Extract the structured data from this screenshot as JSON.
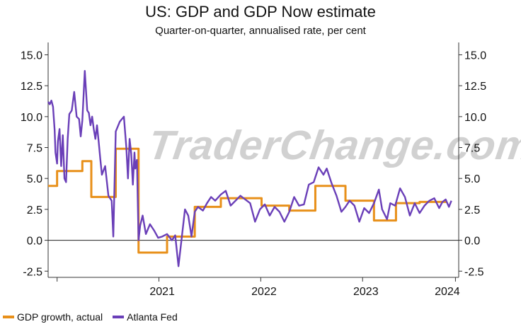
{
  "colors": {
    "actual": "#E8901A",
    "atlanta": "#6A3FB8",
    "axis": "#333333",
    "zero": "#222222"
  },
  "watermark_text": "TraderChange.com",
  "chart_data": {
    "type": "line",
    "title": "US: GDP and GDP Now estimate",
    "subtitle": "Quarter-on-quarter, annualised rate, per cent",
    "ylim": [
      -3.0,
      16.0
    ],
    "xlim": [
      2020.1,
      2025.14
    ],
    "y_ticks": [
      -2.5,
      0.0,
      2.5,
      5.0,
      7.5,
      10.0,
      12.5,
      15.0
    ],
    "y_tick_labels": [
      "-2.5",
      "0.0",
      "2.5",
      "5.0",
      "7.5",
      "10.0",
      "12.5",
      "15.0"
    ],
    "x_ticks": [
      2021.5,
      2022.75,
      2024.0,
      2025.0
    ],
    "x_tick_labels": [
      "2021",
      "2022",
      "2023",
      "2024"
    ],
    "x_major_dividers": [
      2020.21,
      2021.46,
      2022.71,
      2023.96,
      2025.1
    ],
    "legend": [
      "GDP growth, actual",
      "Atlanta Fed"
    ],
    "series": [
      {
        "name": "GDP growth, actual",
        "step": true,
        "x": [
          2020.1,
          2020.21,
          2020.52,
          2020.63,
          2020.93,
          2021.21,
          2021.56,
          2021.9,
          2022.22,
          2022.72,
          2023.06,
          2023.38,
          2023.75,
          2024.1,
          2024.37,
          2024.66,
          2025.0
        ],
        "y": [
          4.4,
          5.6,
          6.4,
          3.5,
          7.4,
          -1.0,
          0.3,
          2.7,
          3.4,
          2.8,
          2.4,
          4.4,
          3.2,
          1.6,
          3.0,
          3.1,
          3.1
        ]
      },
      {
        "name": "Atlanta Fed",
        "step": false,
        "x": [
          2020.1,
          2020.12,
          2020.14,
          2020.16,
          2020.18,
          2020.19,
          2020.21,
          2020.22,
          2020.24,
          2020.26,
          2020.28,
          2020.3,
          2020.32,
          2020.34,
          2020.36,
          2020.39,
          2020.42,
          2020.45,
          2020.48,
          2020.5,
          2020.52,
          2020.55,
          2020.58,
          2020.6,
          2020.62,
          2020.64,
          2020.66,
          2020.68,
          2020.7,
          2020.72,
          2020.74,
          2020.76,
          2020.8,
          2020.84,
          2020.88,
          2020.9,
          2020.93,
          2020.98,
          2021.03,
          2021.06,
          2021.08,
          2021.1,
          2021.12,
          2021.14,
          2021.16,
          2021.17,
          2021.19,
          2021.21,
          2021.23,
          2021.26,
          2021.3,
          2021.35,
          2021.4,
          2021.45,
          2021.5,
          2021.56,
          2021.62,
          2021.66,
          2021.7,
          2021.74,
          2021.78,
          2021.82,
          2021.86,
          2021.9,
          2021.94,
          2022.0,
          2022.05,
          2022.1,
          2022.15,
          2022.22,
          2022.28,
          2022.34,
          2022.4,
          2022.46,
          2022.52,
          2022.58,
          2022.64,
          2022.7,
          2022.76,
          2022.82,
          2022.88,
          2022.94,
          2023.0,
          2023.06,
          2023.12,
          2023.18,
          2023.24,
          2023.3,
          2023.36,
          2023.42,
          2023.48,
          2023.52,
          2023.58,
          2023.64,
          2023.7,
          2023.75,
          2023.8,
          2023.86,
          2023.92,
          2023.98,
          2024.04,
          2024.1,
          2024.16,
          2024.2,
          2024.26,
          2024.3,
          2024.36,
          2024.42,
          2024.48,
          2024.54,
          2024.6,
          2024.66,
          2024.72,
          2024.78,
          2024.84,
          2024.9,
          2024.94,
          2024.98,
          2025.02,
          2025.05
        ],
        "y": [
          11.2,
          11.0,
          11.3,
          10.8,
          8.9,
          7.1,
          6.2,
          8.0,
          9.0,
          6.0,
          8.5,
          5.0,
          4.7,
          8.2,
          10.2,
          10.5,
          12.0,
          10.0,
          9.8,
          8.4,
          9.7,
          13.7,
          10.5,
          10.3,
          9.3,
          10.0,
          9.0,
          8.2,
          9.3,
          8.0,
          6.6,
          5.3,
          6.0,
          3.6,
          3.2,
          0.3,
          8.8,
          9.6,
          10.0,
          7.5,
          5.0,
          8.2,
          7.0,
          4.5,
          7.1,
          5.8,
          6.5,
          0.0,
          1.2,
          2.0,
          0.5,
          1.3,
          0.8,
          0.2,
          0.3,
          0.5,
          0.0,
          0.4,
          -2.1,
          0.2,
          2.5,
          2.0,
          0.3,
          2.3,
          2.7,
          2.4,
          3.0,
          3.5,
          3.2,
          3.7,
          4.0,
          2.8,
          3.2,
          3.6,
          3.3,
          3.0,
          1.5,
          2.5,
          2.9,
          2.0,
          2.7,
          2.3,
          1.5,
          2.3,
          3.5,
          2.8,
          2.9,
          4.5,
          4.7,
          5.9,
          5.3,
          5.8,
          4.6,
          3.6,
          2.3,
          2.7,
          3.2,
          2.8,
          1.5,
          2.6,
          2.2,
          3.0,
          4.1,
          2.5,
          1.7,
          3.0,
          2.8,
          4.2,
          3.5,
          2.0,
          3.0,
          2.2,
          2.8,
          3.2,
          3.4,
          2.6,
          3.1,
          3.3,
          2.7,
          3.2
        ]
      }
    ]
  }
}
